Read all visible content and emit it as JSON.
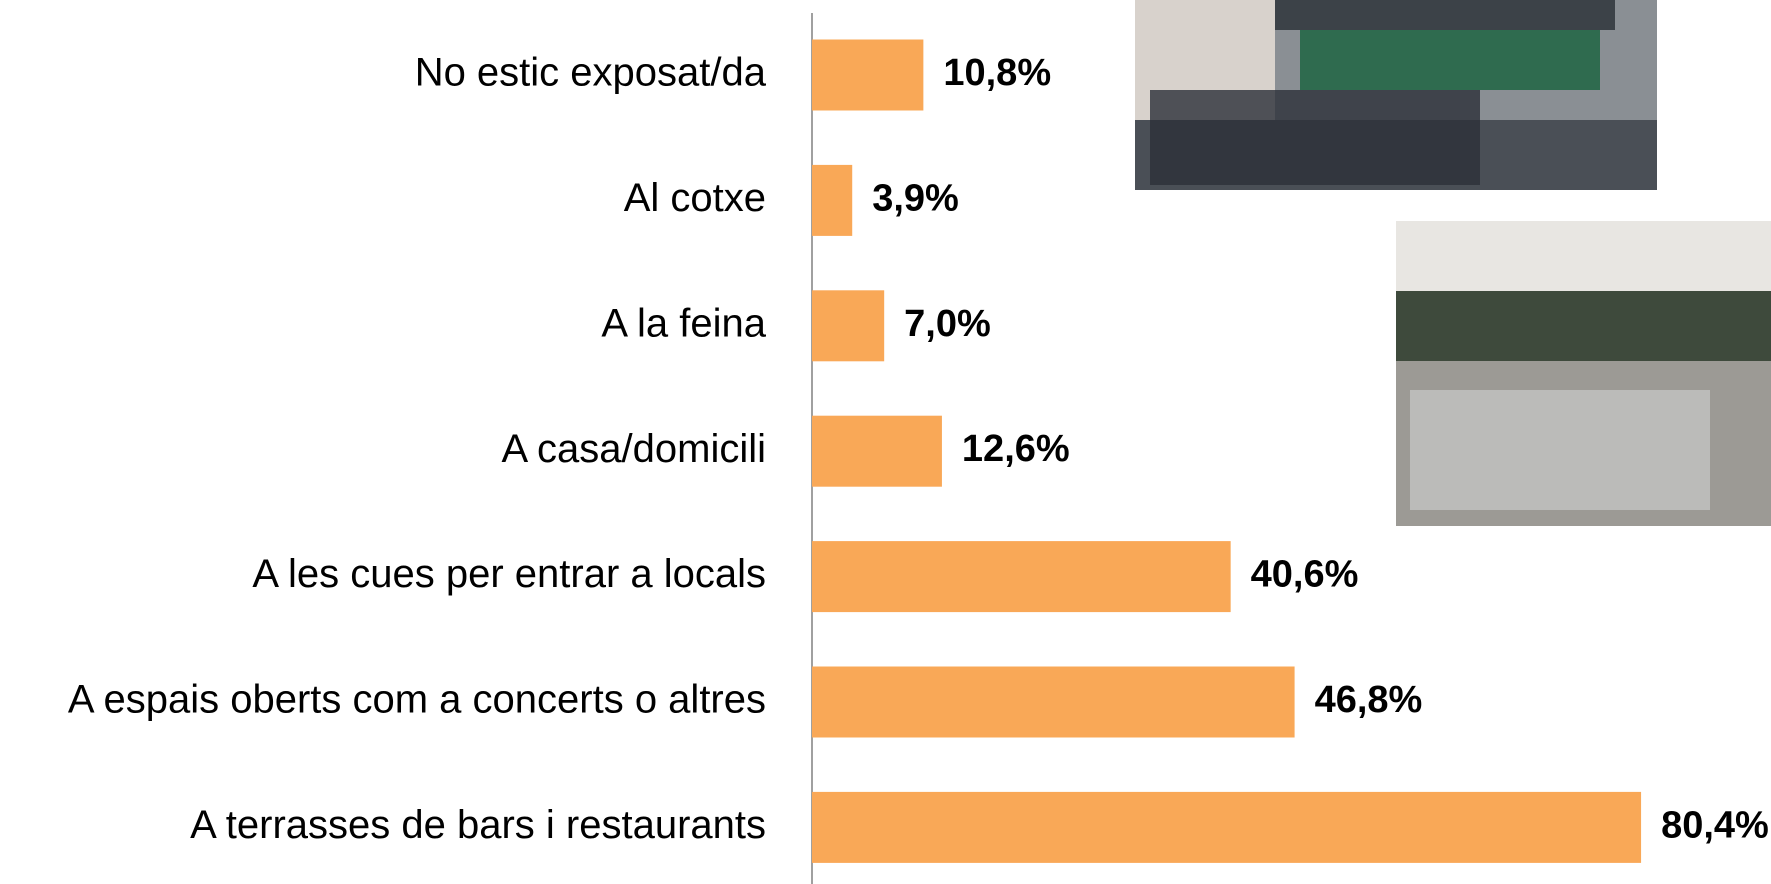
{
  "chart_data": {
    "type": "bar",
    "orientation": "horizontal",
    "categories": [
      "No estic exposat/da",
      "Al cotxe",
      "A la feina",
      "A casa/domicili",
      "A les cues per entrar a locals",
      "A espais oberts com a concerts o altres",
      "A terrasses de bars i restaurants"
    ],
    "values": [
      10.8,
      3.9,
      7.0,
      12.6,
      40.6,
      46.8,
      80.4
    ],
    "value_labels": [
      "10,8%",
      "3,9%",
      "7,0%",
      "12,6%",
      "40,6%",
      "46,8%",
      "80,4%"
    ],
    "color": "#f9a857",
    "xlim": [
      0,
      93
    ]
  }
}
